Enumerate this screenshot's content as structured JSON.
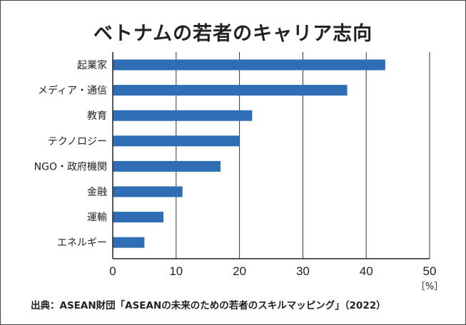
{
  "chart_data": {
    "type": "bar",
    "orientation": "horizontal",
    "title": "ベトナムの若者のキャリア志向",
    "categories": [
      "起業家",
      "メディア・通信",
      "教育",
      "テクノロジー",
      "NGO・政府機関",
      "金融",
      "運輸",
      "エネルギー"
    ],
    "values": [
      43,
      37,
      22,
      20,
      17,
      11,
      8,
      5
    ],
    "xlim": [
      0,
      50
    ],
    "xticks": [
      "0",
      "10",
      "20",
      "30",
      "40",
      "50"
    ],
    "unit": "［%］",
    "grid": "vertical",
    "bar_color": "#2f6eb5"
  },
  "source": "出典：ASEAN財団「ASEANの未来のための若者のスキルマッピング」（2022）"
}
